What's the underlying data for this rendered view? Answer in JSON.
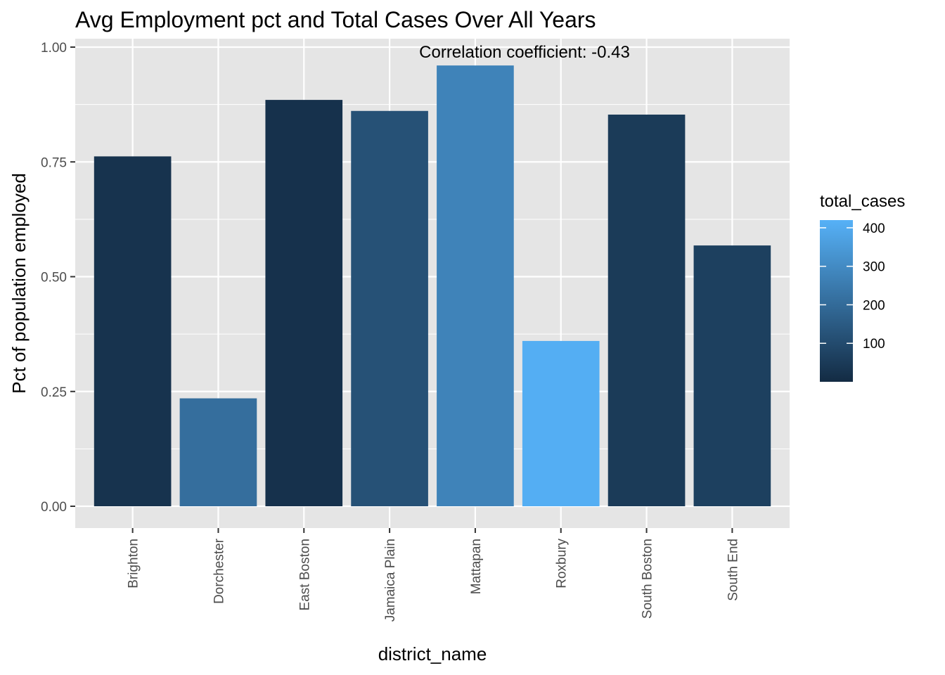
{
  "chart_data": {
    "type": "bar",
    "title": "Avg Employment pct and Total Cases Over All Years",
    "xlabel": "district_name",
    "ylabel": "Pct of population employed",
    "annotation": "Correlation coefficient:  -0.43",
    "categories": [
      "Brighton",
      "Dorchester",
      "East Boston",
      "Jamaica Plain",
      "Mattapan",
      "Roxbury",
      "South Boston",
      "South End"
    ],
    "values": [
      0.762,
      0.235,
      0.885,
      0.861,
      0.96,
      0.36,
      0.853,
      0.568
    ],
    "fill_values": [
      25,
      210,
      20,
      120,
      275,
      410,
      50,
      65
    ],
    "ylim": [
      0,
      1.0
    ],
    "yticks": [
      0.0,
      0.25,
      0.5,
      0.75,
      1.0
    ],
    "ytick_labels": [
      "0.00",
      "0.25",
      "0.50",
      "0.75",
      "1.00"
    ],
    "grid": true,
    "legend": {
      "title": "total_cases",
      "placement": "right",
      "fill_range": [
        0,
        420
      ],
      "ticks": [
        100,
        200,
        300,
        400
      ],
      "tick_labels": [
        "100",
        "200",
        "300",
        "400"
      ],
      "low_color": "#132B43",
      "high_color": "#56B1F7"
    },
    "colors": {
      "panel_background": "#e5e5e5",
      "grid_line": "#ffffff",
      "tick_text": "#4d4d4d"
    }
  }
}
